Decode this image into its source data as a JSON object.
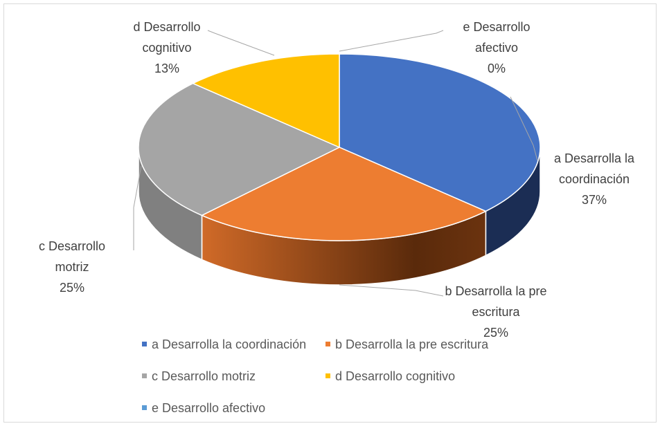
{
  "chart_data": {
    "type": "pie3d",
    "categories": [
      "a Desarrolla la coordinación",
      "b Desarrolla la pre escritura",
      "c Desarrollo motriz",
      "d Desarrollo cognitivo",
      "e Desarrollo afectivo"
    ],
    "values": [
      37,
      25,
      25,
      13,
      0
    ],
    "value_labels": [
      "37%",
      "25%",
      "25%",
      "13%",
      "0%"
    ],
    "colors": [
      "#4472c4",
      "#ed7d31",
      "#a5a5a5",
      "#ffc000",
      "#5b9bd5"
    ],
    "legend": "bottom"
  }
}
